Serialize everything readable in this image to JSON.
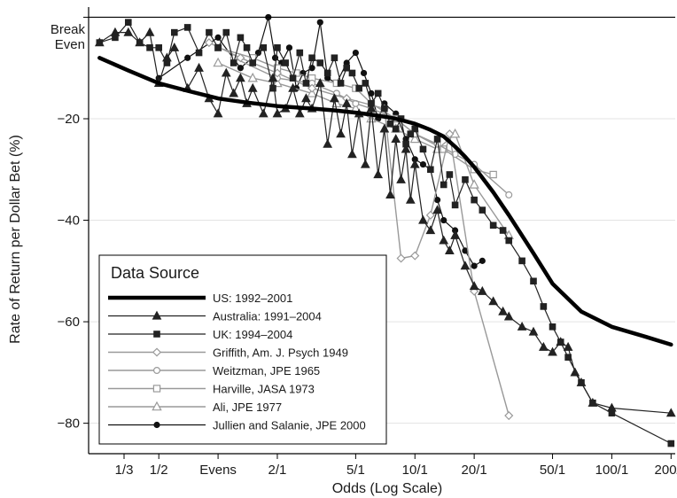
{
  "chart_data": {
    "type": "line",
    "title": "",
    "xlabel": "Odds (Log Scale)",
    "ylabel": "Rate of Return per Dollar Bet (%)",
    "x_scale": "log",
    "xlim": [
      0.22,
      210
    ],
    "ylim": [
      -86,
      2
    ],
    "x_ticks": [
      {
        "value": 0.333,
        "label": "1/3"
      },
      {
        "value": 0.5,
        "label": "1/2"
      },
      {
        "value": 1,
        "label": "Evens"
      },
      {
        "value": 2,
        "label": "2/1"
      },
      {
        "value": 5,
        "label": "5/1"
      },
      {
        "value": 10,
        "label": "10/1"
      },
      {
        "value": 20,
        "label": "20/1"
      },
      {
        "value": 50,
        "label": "50/1"
      },
      {
        "value": 100,
        "label": "100/1"
      },
      {
        "value": 200,
        "label": "200/1"
      }
    ],
    "y_ticks": [
      {
        "value": -20,
        "label": "−20"
      },
      {
        "value": -40,
        "label": "−40"
      },
      {
        "value": -60,
        "label": "−60"
      },
      {
        "value": -80,
        "label": "−80"
      }
    ],
    "reference_line": {
      "y": 0,
      "label_line1": "Break",
      "label_line2": "Even"
    },
    "grid": "horizontal",
    "legend": {
      "title": "Data Source",
      "position": "bottom-left"
    },
    "series": [
      {
        "name": "US: 1992–2001",
        "color": "#000000",
        "marker": "none",
        "line_width": 4.5,
        "x": [
          0.25,
          0.35,
          0.5,
          0.7,
          1,
          1.4,
          2,
          3,
          4,
          5,
          6,
          7,
          8,
          9,
          10,
          11,
          12,
          14,
          16,
          18,
          20,
          25,
          30,
          40,
          50,
          70,
          100,
          150,
          200
        ],
        "y": [
          -8,
          -10.5,
          -13,
          -14.5,
          -16,
          -16.8,
          -17.5,
          -18,
          -18.4,
          -18.8,
          -19.2,
          -19.6,
          -20,
          -20.5,
          -21,
          -21.6,
          -22.2,
          -23.5,
          -25.5,
          -27.5,
          -29.5,
          -34.5,
          -39,
          -46.5,
          -52.5,
          -58,
          -61,
          -63,
          -64.5
        ]
      },
      {
        "name": "Australia: 1991–2004",
        "color": "#222222",
        "marker": "triangle",
        "line_width": 1.2,
        "x": [
          0.25,
          0.3,
          0.35,
          0.4,
          0.45,
          0.5,
          0.55,
          0.6,
          0.7,
          0.8,
          0.9,
          1.0,
          1.1,
          1.2,
          1.3,
          1.4,
          1.5,
          1.7,
          1.9,
          2.0,
          2.2,
          2.4,
          2.6,
          2.8,
          3.0,
          3.3,
          3.6,
          3.9,
          4.2,
          4.5,
          4.8,
          5.2,
          5.6,
          6.0,
          6.5,
          7.0,
          7.5,
          8.0,
          8.5,
          9.0,
          9.5,
          10.0,
          11,
          12,
          13,
          14,
          15,
          16,
          18,
          20,
          22,
          25,
          28,
          30,
          35,
          40,
          45,
          50,
          55,
          60,
          65,
          70,
          80,
          100,
          200
        ],
        "y": [
          -5,
          -3,
          -3,
          -5,
          -3,
          -13,
          -8,
          -6,
          -14,
          -10,
          -16,
          -19,
          -11,
          -15,
          -12,
          -17,
          -14,
          -19,
          -12,
          -19,
          -18,
          -14,
          -19,
          -16,
          -18,
          -13,
          -25,
          -16,
          -23,
          -17,
          -27,
          -19,
          -29,
          -18,
          -31,
          -22,
          -35,
          -24,
          -32,
          -26,
          -36,
          -29,
          -40,
          -42,
          -38,
          -44,
          -46,
          -43,
          -49,
          -53,
          -54,
          -56,
          -58,
          -59,
          -61,
          -62,
          -65,
          -66,
          -64,
          -65,
          -70,
          -72,
          -76,
          -77,
          -78
        ]
      },
      {
        "name": "UK: 1994–2004",
        "color": "#222222",
        "marker": "square",
        "line_width": 1.2,
        "x": [
          0.25,
          0.3,
          0.35,
          0.4,
          0.45,
          0.5,
          0.55,
          0.6,
          0.7,
          0.8,
          0.9,
          1.0,
          1.1,
          1.2,
          1.3,
          1.4,
          1.5,
          1.7,
          1.9,
          2.0,
          2.2,
          2.4,
          2.6,
          2.8,
          3.0,
          3.3,
          3.6,
          3.9,
          4.2,
          4.5,
          4.8,
          5.2,
          5.6,
          6.0,
          6.5,
          7.0,
          7.5,
          8.0,
          8.5,
          9.0,
          9.5,
          10.0,
          11,
          12,
          13,
          14,
          15,
          16,
          18,
          20,
          22,
          25,
          28,
          30,
          35,
          40,
          45,
          50,
          55,
          60,
          70,
          80,
          100,
          200
        ],
        "y": [
          -5,
          -4,
          -1,
          -5,
          -6,
          -6,
          -9,
          -3,
          -2,
          -7,
          -3,
          -6,
          -3,
          -9,
          -4,
          -6,
          -9,
          -6,
          -14,
          -6,
          -9,
          -12,
          -7,
          -13,
          -8,
          -9,
          -11,
          -8,
          -13,
          -10,
          -11,
          -14,
          -13,
          -17,
          -15,
          -18,
          -21,
          -22,
          -20,
          -25,
          -23,
          -22,
          -26,
          -30,
          -24,
          -33,
          -31,
          -37,
          -32,
          -36,
          -38,
          -41,
          -42,
          -44,
          -48,
          -52,
          -57,
          -61,
          -64,
          -67,
          -72,
          -76,
          -78,
          -84
        ]
      },
      {
        "name": "Griffith, Am. J. Psych 1949",
        "color": "#999999",
        "marker": "diamond",
        "line_width": 1.4,
        "x": [
          0.9,
          1.3,
          2,
          3,
          4.5,
          7,
          8.5,
          10,
          12,
          15,
          20,
          30
        ],
        "y": [
          -5,
          -8,
          -11,
          -14,
          -16,
          -18,
          -47.5,
          -47,
          -39,
          -23,
          -54,
          -78.5
        ]
      },
      {
        "name": "Weitzman, JPE 1965",
        "color": "#999999",
        "marker": "circle-open",
        "line_width": 1.4,
        "x": [
          1.2,
          2,
          3,
          4,
          5,
          6,
          8,
          10,
          13,
          16,
          20,
          30
        ],
        "y": [
          -8,
          -12,
          -13,
          -15,
          -17,
          -18,
          -20,
          -23,
          -25,
          -27,
          -29,
          -35
        ]
      },
      {
        "name": "Harville, JASA 1973",
        "color": "#999999",
        "marker": "square-open",
        "line_width": 1.4,
        "x": [
          1.0,
          1.5,
          2.0,
          2.5,
          3.0,
          4.0,
          5.0,
          6.0,
          8.0,
          10,
          14,
          20,
          25
        ],
        "y": [
          -6,
          -8,
          -10,
          -11,
          -12,
          -13,
          -14,
          -17,
          -20,
          -23,
          -26,
          -30,
          -31
        ]
      },
      {
        "name": "Ali, JPE 1977",
        "color": "#999999",
        "marker": "triangle-open",
        "line_width": 1.4,
        "x": [
          1.0,
          1.5,
          2.0,
          3.0,
          4.0,
          5.0,
          6.0,
          8.0,
          10,
          13,
          16,
          20,
          30
        ],
        "y": [
          -9,
          -12,
          -13,
          -15,
          -17,
          -18,
          -20,
          -22,
          -24,
          -26,
          -23,
          -33,
          -43
        ]
      },
      {
        "name": "Jullien and Salanie, JPE 2000",
        "color": "#111111",
        "marker": "circle",
        "line_width": 1.2,
        "x": [
          0.5,
          0.7,
          1.0,
          1.3,
          1.6,
          1.8,
          1.95,
          2.1,
          2.3,
          2.5,
          2.7,
          3.0,
          3.3,
          3.6,
          4.0,
          4.5,
          5.0,
          5.5,
          6.0,
          6.5,
          7.0,
          8.0,
          9.0,
          10,
          11,
          12,
          13,
          14,
          16,
          18,
          20,
          22
        ],
        "y": [
          -12,
          -8,
          -4,
          -10,
          -7,
          0,
          -8,
          -9,
          -6,
          -14,
          -11,
          -10,
          -1,
          -12,
          -13,
          -9,
          -7,
          -11,
          -15,
          -20,
          -17,
          -19,
          -24,
          -28,
          -29,
          -30,
          -36,
          -40,
          -42,
          -46,
          -49,
          -48
        ]
      }
    ]
  }
}
